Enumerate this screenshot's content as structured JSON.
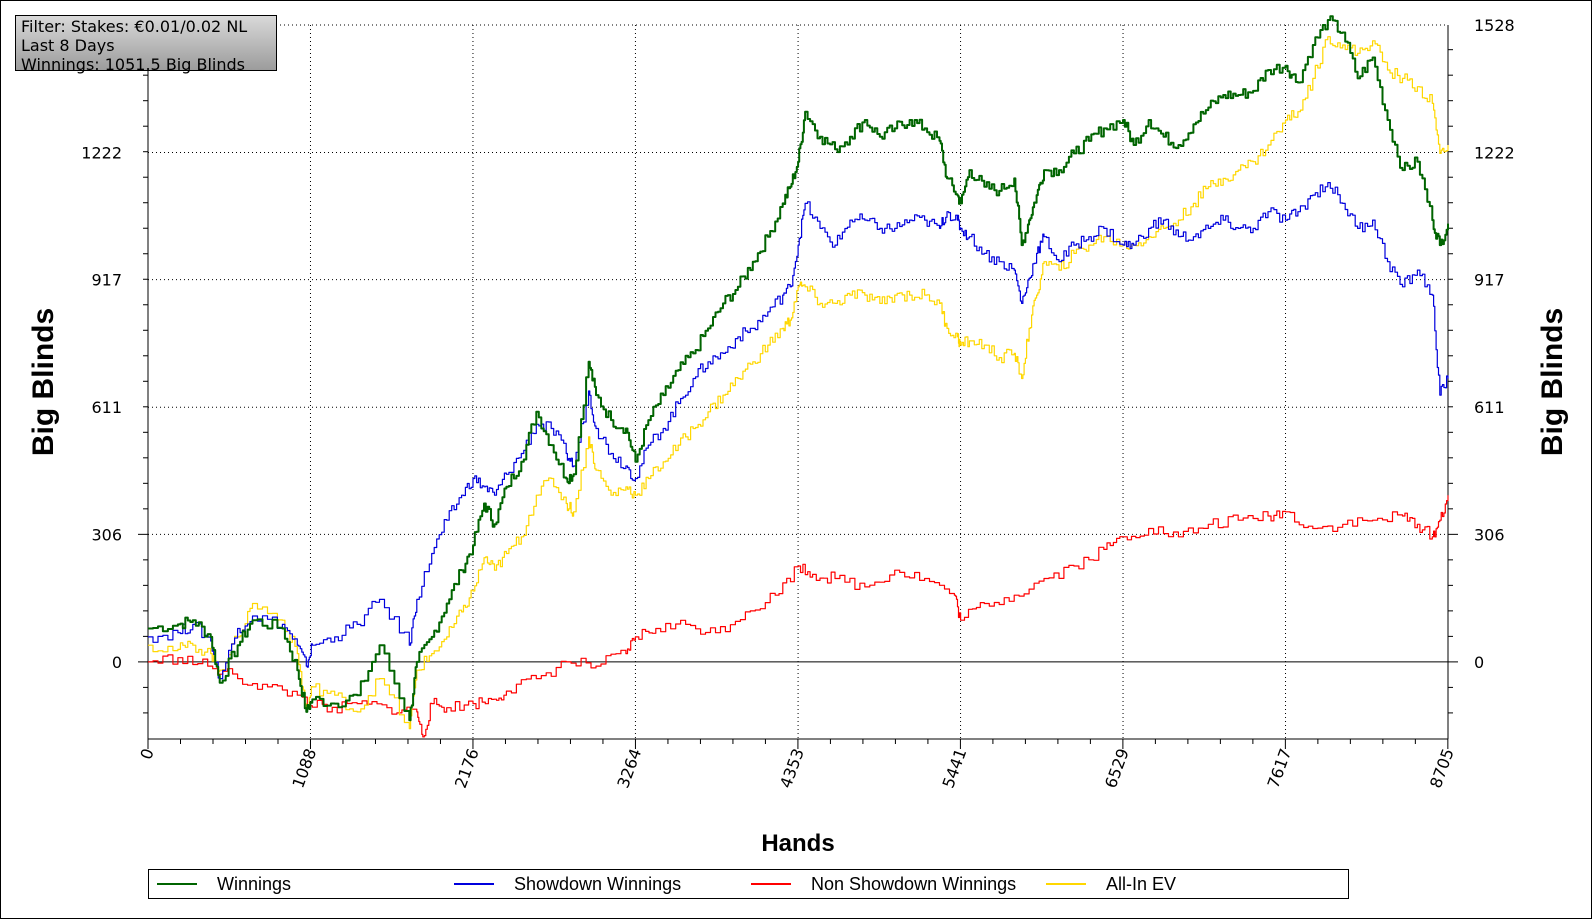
{
  "filter": {
    "line1": "Filter: Stakes: €0.01/0.02 NL",
    "line2": "Last  8 Days",
    "line3": "Winnings: 1051.5 Big Blinds"
  },
  "chart_data": {
    "type": "line",
    "title": "",
    "xlabel": "Hands",
    "ylabel": "Big Blinds",
    "xlim": [
      0,
      8705
    ],
    "ylim": [
      -185,
      1528
    ],
    "x_ticks": [
      0,
      1088,
      2176,
      3264,
      4353,
      5441,
      6529,
      7617,
      8705
    ],
    "y_ticks": [
      0,
      306,
      611,
      917,
      1222,
      1528
    ],
    "grid": true,
    "legend_position": "bottom",
    "series": [
      {
        "name": "Winnings",
        "color": "#006400",
        "x": [
          0,
          200,
          300,
          420,
          480,
          600,
          700,
          900,
          1000,
          1060,
          1100,
          1250,
          1400,
          1550,
          1750,
          1800,
          1900,
          2000,
          2100,
          2176,
          2250,
          2320,
          2400,
          2500,
          2600,
          2700,
          2800,
          2850,
          2950,
          3000,
          3100,
          3200,
          3264,
          3350,
          3450,
          3550,
          3650,
          3750,
          3850,
          3950,
          4050,
          4150,
          4250,
          4300,
          4353,
          4400,
          4500,
          4600,
          4700,
          4800,
          4900,
          5000,
          5100,
          5200,
          5300,
          5350,
          5420,
          5441,
          5500,
          5600,
          5700,
          5800,
          5850,
          5900,
          5950,
          6000,
          6100,
          6200,
          6300,
          6400,
          6529,
          6600,
          6700,
          6800,
          6900,
          7000,
          7100,
          7200,
          7300,
          7400,
          7500,
          7617,
          7700,
          7800,
          7900,
          8000,
          8100,
          8200,
          8300,
          8400,
          8500,
          8600,
          8650,
          8705
        ],
        "values": [
          80,
          90,
          100,
          60,
          -50,
          40,
          100,
          80,
          -20,
          -120,
          -90,
          -100,
          -80,
          40,
          -140,
          0,
          60,
          140,
          220,
          280,
          380,
          330,
          420,
          480,
          600,
          520,
          440,
          450,
          720,
          640,
          580,
          560,
          480,
          580,
          640,
          700,
          740,
          800,
          860,
          900,
          960,
          1020,
          1100,
          1140,
          1200,
          1320,
          1260,
          1230,
          1260,
          1300,
          1260,
          1280,
          1300,
          1280,
          1250,
          1160,
          1120,
          1100,
          1180,
          1140,
          1130,
          1160,
          1000,
          1060,
          1120,
          1180,
          1180,
          1220,
          1250,
          1280,
          1300,
          1240,
          1300,
          1260,
          1240,
          1290,
          1330,
          1360,
          1360,
          1370,
          1420,
          1430,
          1390,
          1480,
          1540,
          1510,
          1400,
          1450,
          1300,
          1180,
          1200,
          1060,
          1000,
          1051.5
        ]
      },
      {
        "name": "Showdown Winnings",
        "color": "#0000dd",
        "x": [
          0,
          200,
          300,
          420,
          480,
          600,
          700,
          900,
          1000,
          1060,
          1100,
          1250,
          1400,
          1550,
          1750,
          1800,
          1900,
          2000,
          2100,
          2176,
          2250,
          2320,
          2400,
          2500,
          2600,
          2700,
          2800,
          2850,
          2950,
          3000,
          3100,
          3200,
          3264,
          3350,
          3450,
          3550,
          3650,
          3750,
          3850,
          3950,
          4050,
          4150,
          4250,
          4300,
          4353,
          4400,
          4500,
          4600,
          4700,
          4800,
          4900,
          5000,
          5100,
          5200,
          5300,
          5350,
          5420,
          5441,
          5500,
          5600,
          5700,
          5800,
          5850,
          5900,
          5950,
          6000,
          6100,
          6200,
          6300,
          6400,
          6529,
          6600,
          6700,
          6800,
          6900,
          7000,
          7100,
          7200,
          7300,
          7400,
          7500,
          7617,
          7700,
          7800,
          7900,
          8000,
          8100,
          8200,
          8300,
          8400,
          8500,
          8600,
          8650,
          8705
        ],
        "values": [
          60,
          70,
          90,
          50,
          -40,
          80,
          110,
          90,
          40,
          -10,
          40,
          60,
          90,
          150,
          40,
          150,
          260,
          340,
          400,
          440,
          420,
          400,
          450,
          500,
          570,
          560,
          500,
          470,
          650,
          560,
          500,
          470,
          440,
          520,
          560,
          620,
          680,
          720,
          740,
          780,
          800,
          840,
          880,
          900,
          1000,
          1100,
          1040,
          1000,
          1060,
          1060,
          1040,
          1040,
          1060,
          1060,
          1040,
          1080,
          1060,
          1040,
          1020,
          980,
          960,
          940,
          860,
          920,
          980,
          1020,
          960,
          1000,
          1020,
          1040,
          1000,
          1000,
          1040,
          1060,
          1020,
          1020,
          1040,
          1060,
          1040,
          1040,
          1080,
          1060,
          1080,
          1120,
          1150,
          1100,
          1040,
          1060,
          960,
          900,
          940,
          880,
          640,
          680
        ]
      },
      {
        "name": "Non Showdown Winnings",
        "color": "#ff0000",
        "x": [
          0,
          200,
          400,
          600,
          800,
          1000,
          1200,
          1400,
          1600,
          1800,
          1840,
          1900,
          2000,
          2176,
          2300,
          2400,
          2600,
          2800,
          3000,
          3200,
          3264,
          3400,
          3600,
          3800,
          4000,
          4200,
          4353,
          4450,
          4600,
          4800,
          5000,
          5200,
          5400,
          5441,
          5600,
          5800,
          6000,
          6200,
          6400,
          6529,
          6700,
          6900,
          7100,
          7300,
          7500,
          7617,
          7800,
          8000,
          8200,
          8400,
          8500,
          8600,
          8650,
          8705
        ],
        "values": [
          0,
          10,
          -10,
          -40,
          -60,
          -80,
          -120,
          -100,
          -110,
          -120,
          -180,
          -100,
          -110,
          -100,
          -90,
          -70,
          -40,
          0,
          -10,
          20,
          60,
          80,
          90,
          70,
          120,
          160,
          230,
          210,
          200,
          180,
          220,
          200,
          160,
          100,
          140,
          160,
          200,
          230,
          270,
          300,
          320,
          300,
          330,
          340,
          350,
          360,
          320,
          330,
          340,
          350,
          330,
          300,
          340,
          400
        ]
      },
      {
        "name": "All-In EV",
        "color": "#ffd700",
        "x": [
          0,
          200,
          300,
          420,
          480,
          600,
          700,
          900,
          1000,
          1060,
          1100,
          1250,
          1400,
          1550,
          1750,
          1800,
          1900,
          2000,
          2100,
          2176,
          2250,
          2320,
          2400,
          2500,
          2600,
          2700,
          2800,
          2850,
          2950,
          3000,
          3100,
          3200,
          3264,
          3350,
          3450,
          3550,
          3650,
          3750,
          3850,
          3950,
          4050,
          4150,
          4250,
          4300,
          4353,
          4400,
          4500,
          4600,
          4700,
          4800,
          4900,
          5000,
          5100,
          5200,
          5300,
          5350,
          5420,
          5441,
          5500,
          5600,
          5700,
          5800,
          5850,
          5900,
          5950,
          6000,
          6100,
          6200,
          6300,
          6400,
          6529,
          6600,
          6700,
          6800,
          6900,
          7000,
          7100,
          7200,
          7300,
          7400,
          7500,
          7617,
          7700,
          7800,
          7900,
          8000,
          8100,
          8200,
          8300,
          8400,
          8500,
          8600,
          8650,
          8705
        ],
        "values": [
          40,
          30,
          40,
          20,
          -20,
          60,
          140,
          100,
          20,
          -120,
          -60,
          -80,
          -120,
          -40,
          -160,
          -20,
          20,
          60,
          120,
          170,
          250,
          220,
          260,
          300,
          400,
          440,
          380,
          360,
          540,
          460,
          400,
          420,
          400,
          440,
          480,
          520,
          560,
          600,
          640,
          680,
          720,
          760,
          800,
          820,
          900,
          900,
          860,
          860,
          880,
          880,
          860,
          880,
          880,
          880,
          860,
          800,
          780,
          760,
          770,
          760,
          730,
          740,
          680,
          800,
          880,
          960,
          940,
          980,
          1000,
          1020,
          1000,
          1000,
          1020,
          1040,
          1060,
          1100,
          1140,
          1160,
          1180,
          1200,
          1240,
          1300,
          1320,
          1400,
          1500,
          1480,
          1460,
          1490,
          1420,
          1400,
          1380,
          1340,
          1220,
          1240
        ]
      }
    ]
  }
}
